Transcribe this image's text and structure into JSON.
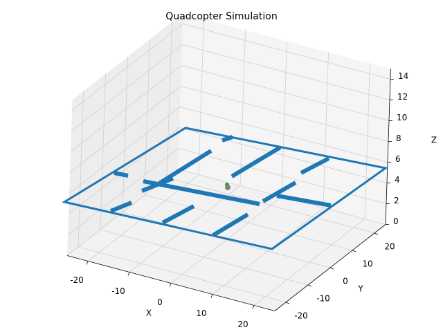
{
  "chart_data": {
    "type": "3d",
    "title": "Quadcopter Simulation",
    "x_label": "X",
    "y_label": "Y",
    "z_label": "Z",
    "xlim": [
      -25,
      25
    ],
    "ylim": [
      -25,
      25
    ],
    "zlim": [
      0,
      15
    ],
    "xticks": [
      -20,
      -10,
      0,
      10,
      20
    ],
    "yticks": [
      -20,
      -10,
      0,
      10,
      20
    ],
    "zticks": [
      0,
      2,
      4,
      6,
      8,
      10,
      12,
      14
    ],
    "grid": true
  }
}
